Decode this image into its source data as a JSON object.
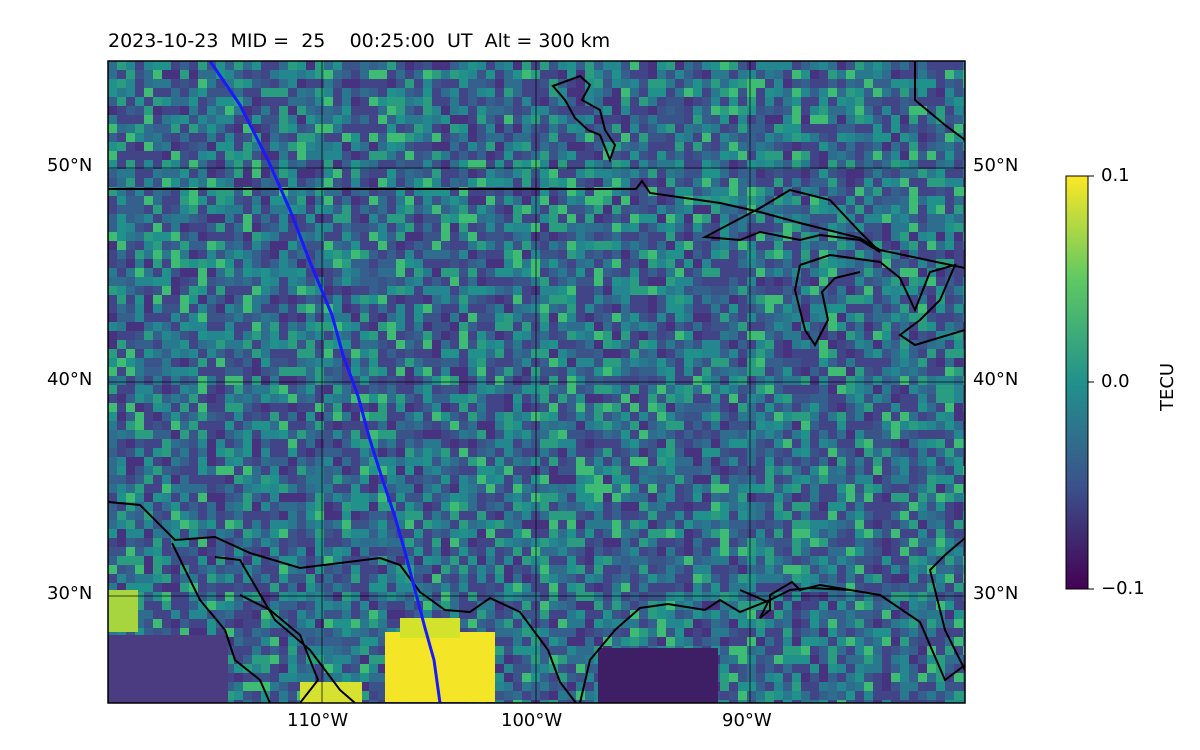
{
  "title": {
    "date": "2023-10-23",
    "mid_label": "MID =",
    "mid_value": "25",
    "time": "00:25:00",
    "time_unit": "UT",
    "alt_label": "Alt = 300 km"
  },
  "map": {
    "projection": "lat-lon",
    "lon_range": [
      -120,
      -80
    ],
    "lat_range": [
      25,
      55
    ],
    "lat_ticks": [
      "50°N",
      "40°N",
      "30°N"
    ],
    "lon_ticks": [
      "110°W",
      "100°W",
      "90°W"
    ],
    "overlay_color": "#1a1aff",
    "coastline_color": "#000000"
  },
  "colorbar": {
    "label": "TECU",
    "ticks": [
      "0.1",
      "0.0",
      "−0.1"
    ],
    "vmin": -0.1,
    "vmax": 0.1,
    "colormap": "viridis"
  }
}
